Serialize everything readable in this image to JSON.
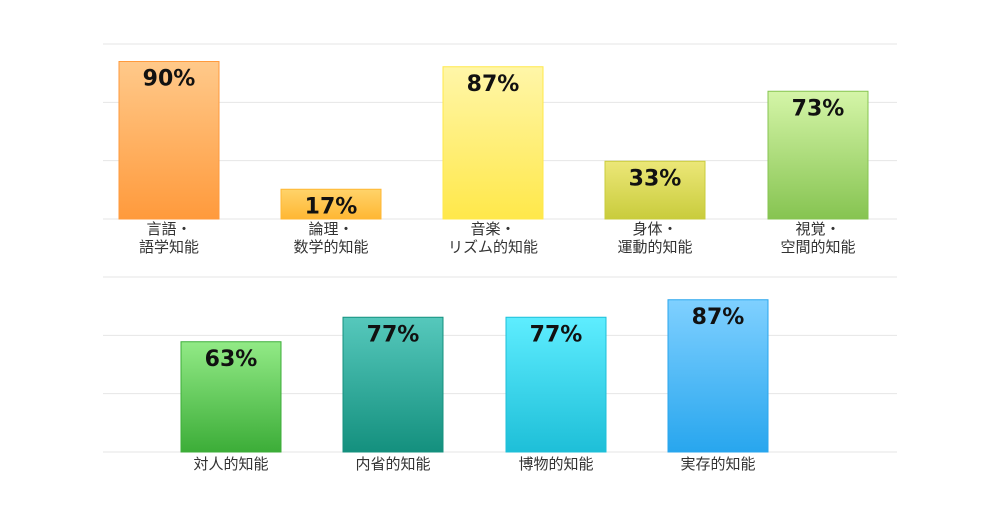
{
  "chart_data": [
    {
      "type": "bar",
      "categories": [
        [
          "言語・",
          "語学知能"
        ],
        [
          "論理・",
          "数学的知能"
        ],
        [
          "音楽・",
          "リズム的知能"
        ],
        [
          "身体・",
          "運動的知能"
        ],
        [
          "視覚・",
          "空間的知能"
        ]
      ],
      "values": [
        90,
        17,
        87,
        33,
        73
      ],
      "value_labels": [
        "90%",
        "17%",
        "87%",
        "33%",
        "73%"
      ],
      "ylim": [
        0,
        100
      ],
      "grid": true,
      "colors": [
        [
          "#ffc98a",
          "#ff9a3c"
        ],
        [
          "#ffd36a",
          "#ffb733"
        ],
        [
          "#fff6a8",
          "#ffe84a"
        ],
        [
          "#ece778",
          "#c9cc3c"
        ],
        [
          "#d5f5a8",
          "#86c451"
        ]
      ]
    },
    {
      "type": "bar",
      "categories": [
        [
          "対人的知能"
        ],
        [
          "内省的知能"
        ],
        [
          "博物的知能"
        ],
        [
          "実存的知能"
        ]
      ],
      "values": [
        63,
        77,
        77,
        87
      ],
      "value_labels": [
        "63%",
        "77%",
        "77%",
        "87%"
      ],
      "ylim": [
        0,
        100
      ],
      "grid": true,
      "colors": [
        [
          "#92ea86",
          "#3cad38"
        ],
        [
          "#56c8bc",
          "#14907e"
        ],
        [
          "#5eedff",
          "#1ebfd8"
        ],
        [
          "#7fd0ff",
          "#28a6ee"
        ]
      ]
    }
  ]
}
